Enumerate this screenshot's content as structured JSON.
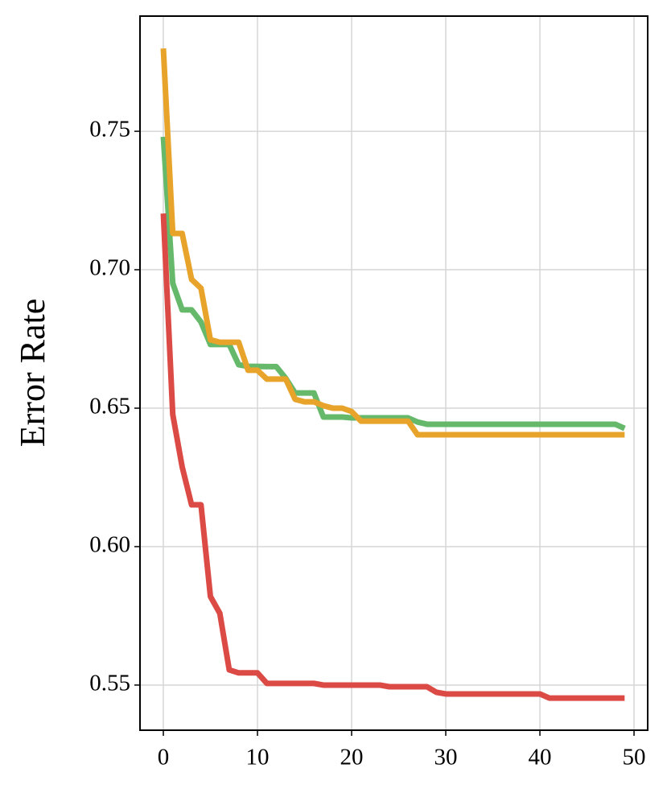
{
  "chart_data": {
    "type": "line",
    "ylabel": "Error Rate",
    "x": [
      0,
      1,
      2,
      3,
      4,
      5,
      6,
      7,
      8,
      9,
      10,
      11,
      12,
      13,
      14,
      15,
      16,
      17,
      18,
      19,
      20,
      21,
      22,
      23,
      24,
      25,
      26,
      27,
      28,
      29,
      30,
      31,
      32,
      33,
      34,
      35,
      36,
      37,
      38,
      39,
      40,
      41,
      42,
      43,
      44,
      45,
      46,
      47,
      48,
      49
    ],
    "series": [
      {
        "color": "#66b96a",
        "values": [
          0.748,
          0.6951,
          0.6855,
          0.6855,
          0.6811,
          0.673,
          0.673,
          0.673,
          0.6657,
          0.6651,
          0.6651,
          0.665,
          0.665,
          0.6608,
          0.6555,
          0.6555,
          0.6555,
          0.6468,
          0.6468,
          0.6468,
          0.6465,
          0.6465,
          0.6465,
          0.6465,
          0.6465,
          0.6465,
          0.6465,
          0.645,
          0.6442,
          0.6442,
          0.6442,
          0.6442,
          0.6442,
          0.6442,
          0.6442,
          0.6442,
          0.6442,
          0.6442,
          0.6442,
          0.6442,
          0.6442,
          0.6442,
          0.6442,
          0.6442,
          0.6442,
          0.6442,
          0.6442,
          0.6442,
          0.6442,
          0.6427
        ]
      },
      {
        "color": "#e8a42a",
        "values": [
          0.7799,
          0.7131,
          0.7131,
          0.6965,
          0.6933,
          0.6747,
          0.6738,
          0.6738,
          0.6738,
          0.6637,
          0.6637,
          0.6605,
          0.6605,
          0.6605,
          0.6532,
          0.6523,
          0.6523,
          0.6509,
          0.65,
          0.65,
          0.6488,
          0.6453,
          0.6453,
          0.6453,
          0.6453,
          0.6453,
          0.6453,
          0.6404,
          0.6404,
          0.6404,
          0.6404,
          0.6404,
          0.6404,
          0.6404,
          0.6404,
          0.6404,
          0.6404,
          0.6404,
          0.6404,
          0.6404,
          0.6404,
          0.6404,
          0.6404,
          0.6404,
          0.6404,
          0.6404,
          0.6404,
          0.6404,
          0.6404,
          0.6404
        ]
      },
      {
        "color": "#dc4a46",
        "values": [
          0.7203,
          0.6477,
          0.6288,
          0.6151,
          0.6151,
          0.582,
          0.5759,
          0.5555,
          0.5544,
          0.5544,
          0.5544,
          0.5506,
          0.5506,
          0.5506,
          0.5506,
          0.5506,
          0.5506,
          0.55,
          0.55,
          0.55,
          0.55,
          0.55,
          0.55,
          0.55,
          0.5494,
          0.5494,
          0.5494,
          0.5494,
          0.5494,
          0.5474,
          0.5468,
          0.5468,
          0.5468,
          0.5468,
          0.5468,
          0.5468,
          0.5468,
          0.5468,
          0.5468,
          0.5468,
          0.5468,
          0.5453,
          0.5453,
          0.5453,
          0.5453,
          0.5453,
          0.5453,
          0.5453,
          0.5453,
          0.5453
        ]
      }
    ],
    "xlim": [
      -2.48,
      51.45
    ],
    "ylim": [
      0.5337,
      0.7916
    ],
    "xticks": [
      0,
      10,
      20,
      30,
      40,
      50
    ],
    "yticks": [
      0.55,
      {
        "value": 0.6,
        "label": "0.60"
      },
      0.65,
      {
        "value": 0.7,
        "label": "0.70"
      },
      0.75
    ],
    "grid": true
  }
}
